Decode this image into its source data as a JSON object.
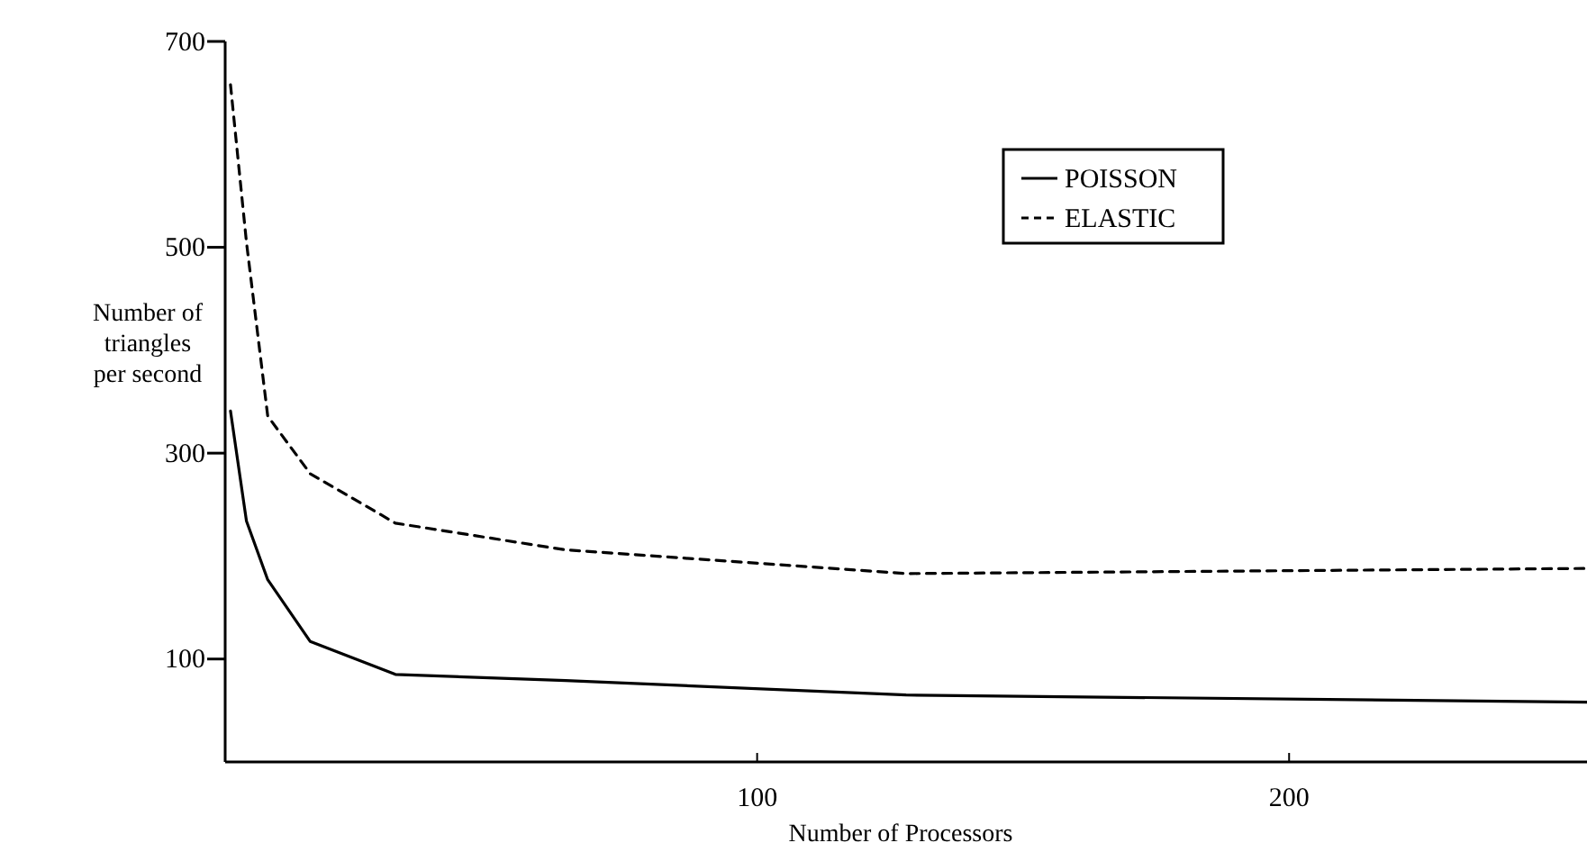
{
  "chart_data": {
    "type": "line",
    "xlabel": "Number of Processors",
    "ylabel": "Number of triangles per second",
    "xlim": [
      0,
      256
    ],
    "xticks": [
      100,
      200
    ],
    "ylim": [
      0,
      700
    ],
    "yticks": [
      100,
      300,
      500,
      700
    ],
    "grid": false,
    "legend": "top right",
    "marker": "none",
    "series": [
      {
        "name": "POISSON",
        "color": "#000000",
        "line_style": "solid",
        "x": [
          1,
          4,
          8,
          16,
          32,
          64,
          128,
          256
        ],
        "values": [
          341,
          234,
          177,
          117,
          85,
          79,
          65,
          58
        ]
      },
      {
        "name": "ELASTIC",
        "color": "#000000",
        "line_style": "dashed",
        "x": [
          1,
          4,
          8,
          16,
          32,
          64,
          128,
          256
        ],
        "values": [
          658,
          505,
          336,
          280,
          232,
          206,
          183,
          188
        ]
      }
    ]
  }
}
